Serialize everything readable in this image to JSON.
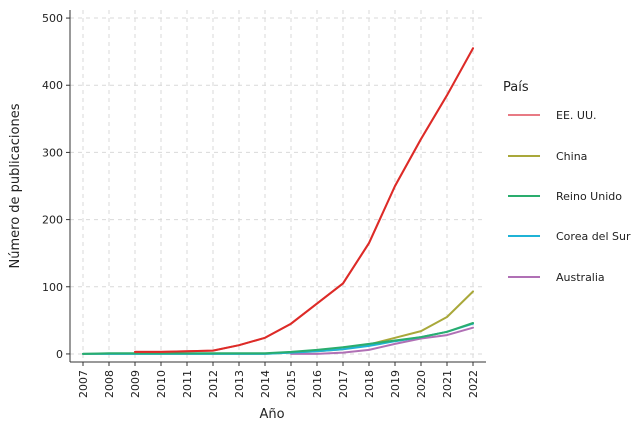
{
  "chart_data": {
    "type": "line",
    "xlabel": "Año",
    "ylabel": "Número de publicaciones",
    "x": [
      2007,
      2008,
      2009,
      2010,
      2011,
      2012,
      2013,
      2014,
      2015,
      2016,
      2017,
      2018,
      2019,
      2020,
      2021,
      2022
    ],
    "xlim": [
      2006.5,
      2022.5
    ],
    "ylim": [
      -12,
      512
    ],
    "yticks": [
      0,
      100,
      200,
      300,
      400,
      500
    ],
    "grid": true,
    "legend": {
      "title": "País",
      "placement": "right"
    },
    "series": [
      {
        "name": "EE. UU.",
        "color": "#e87a84",
        "values": [
          null,
          null,
          3,
          3,
          4,
          5,
          13,
          24,
          45,
          75,
          105,
          165,
          250,
          320,
          385,
          455
        ]
      },
      {
        "name": "China",
        "color": "#a9a83a",
        "values": [
          0,
          0,
          0,
          0,
          0,
          0,
          0,
          0,
          2,
          4,
          7,
          14,
          24,
          34,
          55,
          93
        ]
      },
      {
        "name": "Reino Unido",
        "color": "#2aad6e",
        "values": [
          0,
          1,
          1,
          1,
          1,
          1,
          1,
          1,
          3,
          6,
          10,
          15,
          20,
          25,
          33,
          46
        ]
      },
      {
        "name": "Corea del Sur",
        "color": "#1fb3d6",
        "values": [
          0,
          0,
          0,
          0,
          0,
          0,
          0,
          0,
          2,
          4,
          7,
          12,
          19,
          25,
          33,
          45
        ]
      },
      {
        "name": "Australia",
        "color": "#b070b5",
        "values": [
          null,
          null,
          null,
          null,
          null,
          null,
          null,
          null,
          0,
          0,
          2,
          6,
          15,
          23,
          28,
          39
        ]
      }
    ],
    "overlay_line": {
      "color": "#dd2b27",
      "values": [
        null,
        null,
        3,
        3,
        4,
        5,
        13,
        24,
        45,
        75,
        105,
        165,
        250,
        320,
        385,
        455
      ]
    }
  }
}
